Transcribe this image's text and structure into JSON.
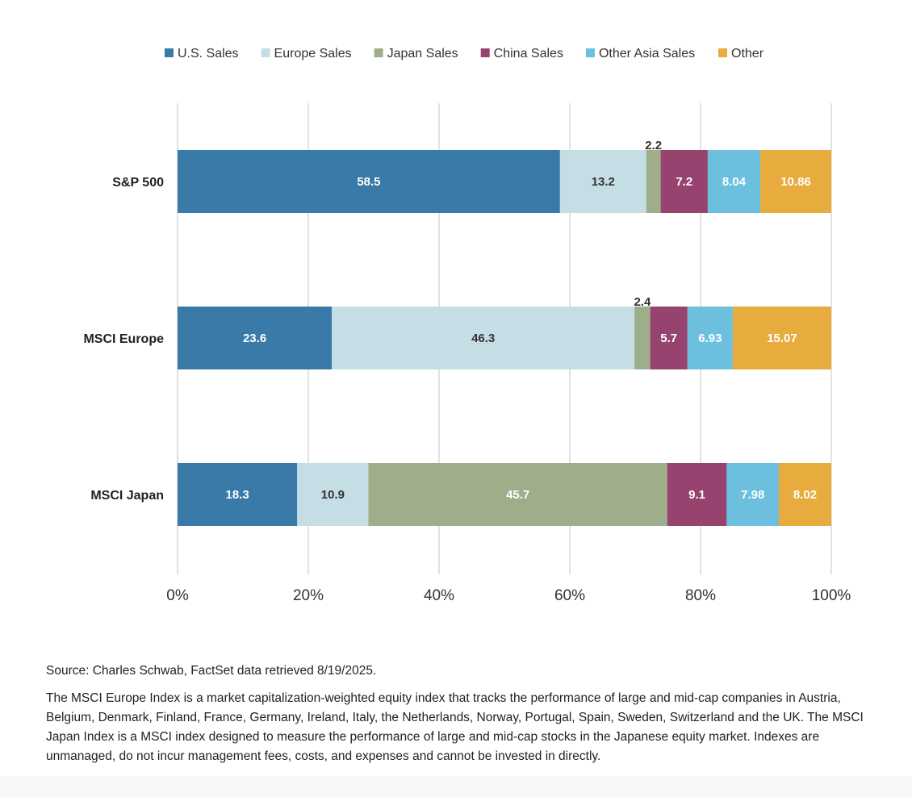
{
  "chart_data": {
    "type": "bar",
    "orientation": "horizontal",
    "stacked": true,
    "categories": [
      "S&P 500",
      "MSCI Europe",
      "MSCI Japan"
    ],
    "series": [
      {
        "name": "U.S. Sales",
        "color": "#3a7aa8",
        "label_color": "#ffffff",
        "values": [
          58.5,
          23.6,
          18.3
        ],
        "labels": [
          "58.5",
          "23.6",
          "18.3"
        ]
      },
      {
        "name": "Europe Sales",
        "color": "#c5dde5",
        "label_color": "#333333",
        "values": [
          13.2,
          46.3,
          10.9
        ],
        "labels": [
          "13.2",
          "46.3",
          "10.9"
        ]
      },
      {
        "name": "Japan Sales",
        "color": "#9eae8a",
        "label_color": "#ffffff",
        "values": [
          2.2,
          2.4,
          45.7
        ],
        "labels": [
          "2.2",
          "2.4",
          "45.7"
        ]
      },
      {
        "name": "China Sales",
        "color": "#96436f",
        "label_color": "#ffffff",
        "values": [
          7.2,
          5.7,
          9.1
        ],
        "labels": [
          "7.2",
          "5.7",
          "9.1"
        ]
      },
      {
        "name": "Other Asia Sales",
        "color": "#6cc0dd",
        "label_color": "#ffffff",
        "values": [
          8.04,
          6.93,
          7.98
        ],
        "labels": [
          "8.04",
          "6.93",
          "7.98"
        ]
      },
      {
        "name": "Other",
        "color": "#e8ac3e",
        "label_color": "#ffffff",
        "values": [
          10.86,
          15.07,
          8.02
        ],
        "labels": [
          "10.86",
          "15.07",
          "8.02"
        ]
      }
    ],
    "xlim": [
      0,
      100
    ],
    "x_ticks": [
      "0%",
      "20%",
      "40%",
      "60%",
      "80%",
      "100%"
    ],
    "grid": true,
    "legend_position": "top"
  },
  "notes": {
    "source": "Source: Charles Schwab, FactSet data retrieved 8/19/2025.",
    "disclaimer": "The MSCI Europe Index is a market capitalization-weighted equity index that tracks the performance of large and mid-cap companies in Austria, Belgium, Denmark, Finland, France, Germany, Ireland, Italy, the Netherlands, Norway, Portugal, Spain, Sweden, Switzerland and the UK. The MSCI Japan Index is a MSCI index designed to measure the performance of large and mid-cap stocks in the Japanese equity market. Indexes are unmanaged, do not incur management fees, costs, and expenses and cannot be invested in directly."
  }
}
